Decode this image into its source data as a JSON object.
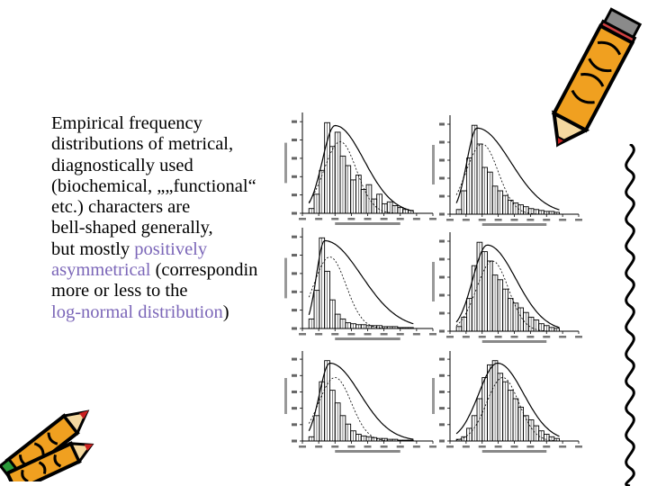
{
  "text_lines": [
    [
      {
        "t": "Empirical frequency"
      }
    ],
    [
      {
        "t": "distributions of metrical,"
      }
    ],
    [
      {
        "t": "diagnostically used"
      }
    ],
    [
      {
        "t": "(biochemical, „„functional“"
      }
    ],
    [
      {
        "t": "etc.) characters are"
      }
    ],
    [
      {
        "t": "bell-shaped generally,"
      }
    ],
    [
      {
        "t": "but mostly "
      },
      {
        "t": "positively",
        "hl": true
      }
    ],
    [
      {
        "t": "asymmetrical",
        "hl": true
      },
      {
        "t": " (correspondin"
      }
    ],
    [
      {
        "t": " more or less to the"
      }
    ],
    [
      {
        "t": "log-normal distribution",
        "hl": true
      },
      {
        "t": ")"
      }
    ]
  ],
  "colors": {
    "highlight": "#7b66b8",
    "text": "#000000",
    "pencil_body": "#f0a020",
    "pencil_outline": "#000000",
    "pencil_tip": "#cc2020",
    "pencil_eraser": "#2a9a3a"
  },
  "icons": [
    "pencil-icon",
    "pencil-icon",
    "squiggle-border"
  ],
  "histograms": [
    {
      "skew": 0.55,
      "peak_pos": 0.25,
      "bars": [
        0.05,
        0.2,
        0.45,
        0.95,
        0.7,
        0.85,
        0.6,
        0.5,
        0.35,
        0.4,
        0.25,
        0.3,
        0.15,
        0.2,
        0.1,
        0.12,
        0.08,
        0.06,
        0.04,
        0.03
      ]
    },
    {
      "skew": 0.75,
      "peak_pos": 0.2,
      "bars": [
        0.05,
        0.25,
        0.6,
        0.95,
        0.75,
        0.5,
        0.45,
        0.3,
        0.25,
        0.2,
        0.15,
        0.12,
        0.1,
        0.08,
        0.06,
        0.05,
        0.04,
        0.03,
        0.03,
        0.02
      ]
    },
    {
      "skew": 0.85,
      "peak_pos": 0.15,
      "bars": [
        0.1,
        0.4,
        0.95,
        0.6,
        0.3,
        0.15,
        0.1,
        0.06,
        0.05,
        0.04,
        0.04,
        0.03,
        0.03,
        0.03,
        0.02,
        0.02,
        0.02,
        0.01,
        0.01,
        0.01
      ]
    },
    {
      "skew": 0.55,
      "peak_pos": 0.3,
      "bars": [
        0.05,
        0.15,
        0.35,
        0.7,
        0.95,
        0.85,
        0.75,
        0.6,
        0.55,
        0.45,
        0.35,
        0.3,
        0.25,
        0.2,
        0.15,
        0.12,
        0.08,
        0.06,
        0.04,
        0.03
      ]
    },
    {
      "skew": 0.6,
      "peak_pos": 0.2,
      "bars": [
        0.05,
        0.3,
        0.7,
        0.95,
        0.6,
        0.45,
        0.3,
        0.2,
        0.12,
        0.08,
        0.06,
        0.05,
        0.04,
        0.03,
        0.03,
        0.02,
        0.02,
        0.01,
        0.01,
        0.01
      ]
    },
    {
      "skew": 0.45,
      "peak_pos": 0.4,
      "bars": [
        0.02,
        0.05,
        0.15,
        0.3,
        0.5,
        0.75,
        0.9,
        0.95,
        0.8,
        0.7,
        0.6,
        0.5,
        0.4,
        0.3,
        0.25,
        0.18,
        0.12,
        0.08,
        0.05,
        0.03
      ]
    }
  ]
}
